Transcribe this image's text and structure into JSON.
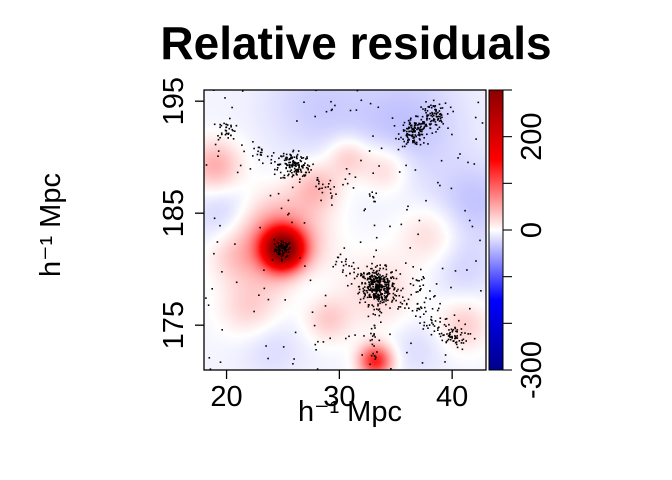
{
  "chart_data": {
    "type": "heatmap",
    "title": "Relative residuals",
    "xlabel": "h⁻¹ Mpc",
    "ylabel": "h⁻¹ Mpc",
    "xlim": [
      18,
      43
    ],
    "ylim": [
      171,
      196
    ],
    "xticks": [
      {
        "value": 20,
        "label": "20"
      },
      {
        "value": 30,
        "label": "30"
      },
      {
        "value": 40,
        "label": "40"
      }
    ],
    "yticks": [
      {
        "value": 175,
        "label": "175"
      },
      {
        "value": 185,
        "label": "185"
      },
      {
        "value": 195,
        "label": "195"
      }
    ],
    "colorbar": {
      "range": [
        -300,
        300
      ],
      "ticks": [
        {
          "value": -300,
          "label": "-300"
        },
        {
          "value": 0,
          "label": "0"
        },
        {
          "value": 200,
          "label": "200"
        }
      ],
      "minor_ticks": [
        -200,
        -100,
        100,
        300
      ],
      "colors": {
        "low": "#00008B",
        "mid": "#FFFFFF",
        "high": "#8B0000"
      }
    },
    "residual_features": [
      {
        "x": 25.0,
        "y": 181.8,
        "value": 300,
        "sigma": 1.2
      },
      {
        "x": 24.5,
        "y": 182.5,
        "value": 90,
        "sigma": 2.6
      },
      {
        "x": 33.2,
        "y": 171.8,
        "value": 140,
        "sigma": 1.0
      },
      {
        "x": 19.0,
        "y": 189.2,
        "value": 55,
        "sigma": 1.6
      },
      {
        "x": 28.0,
        "y": 187.3,
        "value": 45,
        "sigma": 1.5
      },
      {
        "x": 30.8,
        "y": 190.0,
        "value": 40,
        "sigma": 1.3
      },
      {
        "x": 34.0,
        "y": 189.0,
        "value": 35,
        "sigma": 1.5
      },
      {
        "x": 38.0,
        "y": 183.0,
        "value": 28,
        "sigma": 1.8
      },
      {
        "x": 33.5,
        "y": 178.0,
        "value": 30,
        "sigma": 2.3
      },
      {
        "x": 41.0,
        "y": 175.0,
        "value": 35,
        "sigma": 1.6
      },
      {
        "x": 29.0,
        "y": 175.5,
        "value": 35,
        "sigma": 1.4
      },
      {
        "x": 22.0,
        "y": 176.5,
        "value": 32,
        "sigma": 1.8
      },
      {
        "x": 20.5,
        "y": 181.0,
        "value": 22,
        "sigma": 1.5
      },
      {
        "x": 36.0,
        "y": 193.0,
        "value": -30,
        "sigma": 3.5
      },
      {
        "x": 28.0,
        "y": 194.5,
        "value": -22,
        "sigma": 3.2
      },
      {
        "x": 20.0,
        "y": 185.0,
        "value": -25,
        "sigma": 2.0
      },
      {
        "x": 42.0,
        "y": 186.0,
        "value": -28,
        "sigma": 2.5
      },
      {
        "x": 41.0,
        "y": 180.0,
        "value": -18,
        "sigma": 2.0
      },
      {
        "x": 24.0,
        "y": 173.0,
        "value": -15,
        "sigma": 2.0
      },
      {
        "x": 27.0,
        "y": 179.0,
        "value": -12,
        "sigma": 1.5
      },
      {
        "x": 37.0,
        "y": 173.0,
        "value": -14,
        "sigma": 1.8
      }
    ],
    "point_clusters": [
      {
        "x": 25.0,
        "y": 181.8,
        "spread": 0.35,
        "count": 70
      },
      {
        "x": 33.4,
        "y": 178.5,
        "spread": 0.8,
        "count": 320
      },
      {
        "x": 36.6,
        "y": 192.2,
        "spread": 0.6,
        "count": 120
      },
      {
        "x": 38.2,
        "y": 193.6,
        "spread": 0.6,
        "count": 80
      },
      {
        "x": 26.0,
        "y": 189.3,
        "spread": 0.7,
        "count": 120
      },
      {
        "x": 20.0,
        "y": 192.5,
        "spread": 0.4,
        "count": 30
      },
      {
        "x": 40.2,
        "y": 174.0,
        "spread": 0.6,
        "count": 40
      },
      {
        "x": 32.8,
        "y": 186.5,
        "spread": 0.25,
        "count": 8
      }
    ],
    "point_filaments": [
      {
        "x1": 33.4,
        "y1": 178.5,
        "x2": 40.5,
        "y2": 173.5,
        "width": 0.9,
        "count": 90
      },
      {
        "x1": 33.4,
        "y1": 178.5,
        "x2": 33.0,
        "y2": 171.5,
        "width": 0.6,
        "count": 45
      },
      {
        "x1": 26.0,
        "y1": 189.3,
        "x2": 30.0,
        "y2": 186.5,
        "width": 0.7,
        "count": 35
      },
      {
        "x1": 22.5,
        "y1": 190.5,
        "x2": 26.0,
        "y2": 189.3,
        "width": 0.6,
        "count": 30
      },
      {
        "x1": 30.0,
        "y1": 181.0,
        "x2": 33.4,
        "y2": 178.5,
        "width": 0.9,
        "count": 45
      },
      {
        "x1": 36.6,
        "y1": 192.2,
        "x2": 39.5,
        "y2": 194.5,
        "width": 0.6,
        "count": 25
      },
      {
        "x1": 36.0,
        "y1": 180.0,
        "x2": 38.5,
        "y2": 176.0,
        "width": 1.0,
        "count": 30
      }
    ],
    "background_points": 180,
    "grid": false,
    "legend": "colorbar-right"
  }
}
